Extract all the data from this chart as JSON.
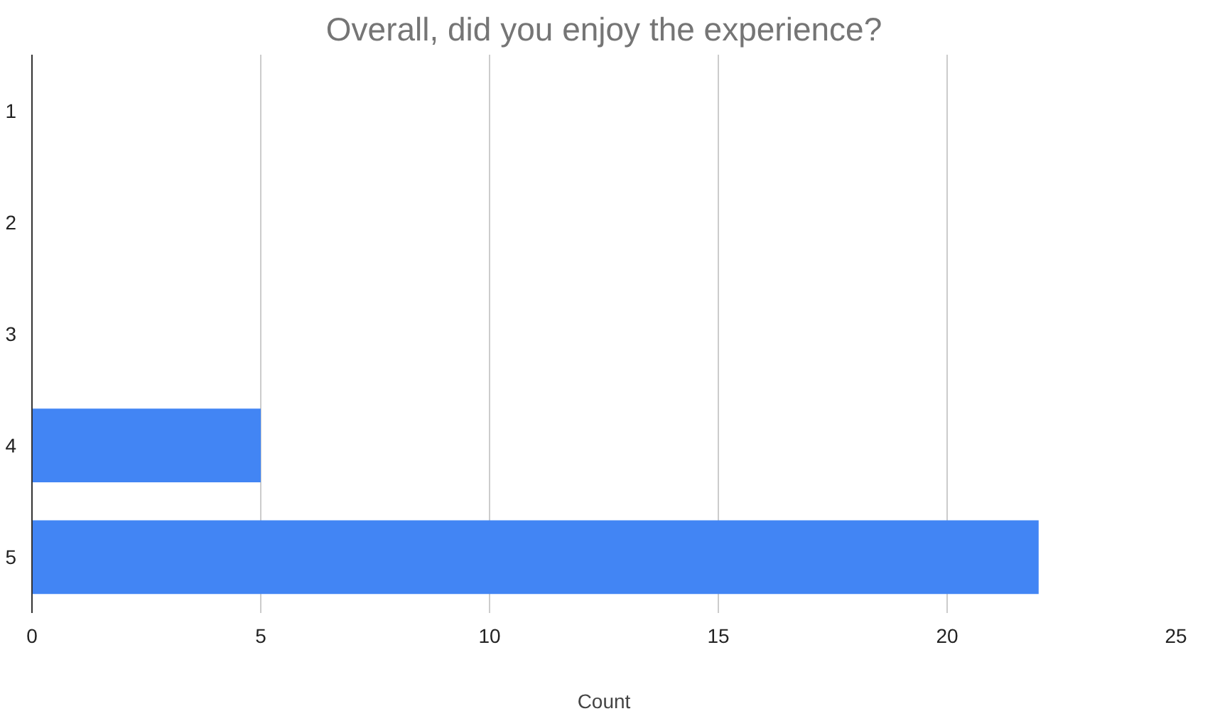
{
  "chart_data": {
    "type": "bar",
    "orientation": "horizontal",
    "title": "Overall, did you enjoy the experience?",
    "xlabel": "Count",
    "categories": [
      "1",
      "2",
      "3",
      "4",
      "5"
    ],
    "values": [
      0,
      0,
      0,
      5,
      22
    ],
    "color": "#4285f4",
    "xlim": [
      0,
      25
    ],
    "xticks": [
      0,
      5,
      10,
      15,
      20,
      25
    ],
    "grid": "x"
  }
}
